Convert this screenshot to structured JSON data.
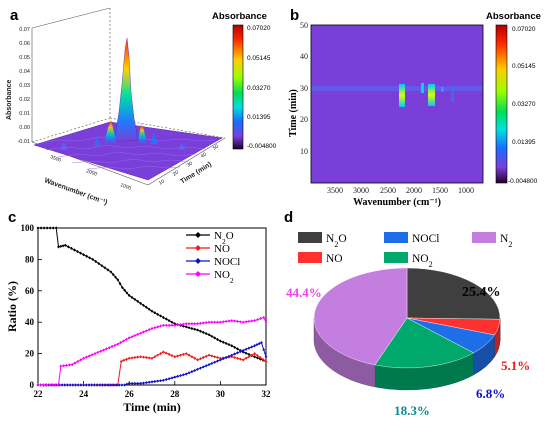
{
  "panels": {
    "a": {
      "letter": "a",
      "colorbar_title": "Absorbance",
      "colorbar_ticks": [
        "0.07020",
        "0.05145",
        "0.03270",
        "0.01395",
        "-0.004800"
      ],
      "z_axis_label": "Absorbance",
      "x_axis_label": "Wavenumber (cm⁻¹)",
      "y_axis_label": "Time (min)",
      "z_ticks": [
        "0.07",
        "0.06",
        "0.05",
        "0.04",
        "0.03",
        "0.02",
        "0.01",
        "0.00",
        "-0.01"
      ],
      "x_ticks": [
        "3500",
        "2000",
        "1000"
      ],
      "y_ticks": [
        "10",
        "20",
        "30",
        "40",
        "50"
      ]
    },
    "b": {
      "letter": "b",
      "colorbar_title": "Absorbance",
      "colorbar_ticks": [
        "0.07020",
        "0.05145",
        "0.03270",
        "0.01395",
        "-0.004800"
      ],
      "xlabel": "Wavenumber (cm⁻¹)",
      "ylabel": "Time (min)",
      "x_ticks": [
        "3500",
        "3000",
        "2500",
        "2000",
        "1500",
        "1000"
      ],
      "y_ticks": [
        "10",
        "20",
        "30",
        "40",
        "50"
      ]
    },
    "c": {
      "letter": "c"
    },
    "d": {
      "letter": "d"
    }
  },
  "colors": {
    "background_map": "#7a3fd8",
    "N2O": "#000000",
    "NO": "#ee1c1c",
    "NOCl": "#1010cc",
    "NO2": "#ff00ff",
    "pie_N2O": "#3f3f3f",
    "pie_NO": "#ff3030",
    "pie_NOCl": "#1e6ee8",
    "pie_NO2": "#00a86b",
    "pie_N2": "#c47ee0"
  },
  "chart_data": [
    {
      "type": "line",
      "panel": "c",
      "xlabel": "Time (min)",
      "ylabel": "Ratio (%)",
      "xlim": [
        22,
        32
      ],
      "ylim": [
        0,
        100
      ],
      "x_ticks": [
        22,
        24,
        26,
        28,
        30,
        32
      ],
      "y_ticks": [
        0,
        20,
        40,
        60,
        80,
        100
      ],
      "legend_position": "top-right",
      "series": [
        {
          "name": "N₂O",
          "key": "N2O",
          "x": [
            22.0,
            22.4,
            22.8,
            22.9,
            23.2,
            23.6,
            24.0,
            24.4,
            24.8,
            25.2,
            25.5,
            25.7,
            26.0,
            26.5,
            27.0,
            27.5,
            28.0,
            28.5,
            29.0,
            29.5,
            30.0,
            30.5,
            31.0,
            31.5,
            32.0
          ],
          "y": [
            100,
            100,
            100,
            88,
            89,
            86,
            83,
            80,
            76,
            72,
            67,
            62,
            57,
            52,
            47,
            43,
            39,
            37,
            35,
            32,
            28,
            25,
            21,
            18,
            15
          ]
        },
        {
          "name": "NO",
          "key": "NO",
          "x": [
            22.0,
            24.0,
            25.5,
            25.65,
            26.0,
            26.5,
            27.0,
            27.5,
            28.0,
            28.5,
            29.0,
            29.5,
            30.0,
            30.5,
            31.0,
            31.5,
            32.0
          ],
          "y": [
            0,
            0,
            0,
            15,
            17,
            18,
            17,
            21,
            18,
            20,
            16,
            19,
            17,
            18,
            16,
            20,
            15
          ]
        },
        {
          "name": "NOCl",
          "key": "NOCl",
          "x": [
            22.0,
            24.0,
            25.8,
            26.0,
            26.5,
            27.0,
            27.5,
            28.0,
            28.5,
            29.0,
            29.5,
            30.0,
            30.5,
            31.0,
            31.5,
            31.8,
            32.0
          ],
          "y": [
            0,
            0,
            0,
            1,
            1,
            2,
            3,
            5,
            7,
            10,
            13,
            16,
            19,
            22,
            25,
            27,
            18
          ]
        },
        {
          "name": "NO₂",
          "key": "NO2",
          "x": [
            22.0,
            22.9,
            23.0,
            23.5,
            24.0,
            24.5,
            25.0,
            25.5,
            26.0,
            26.5,
            27.0,
            27.5,
            28.0,
            28.5,
            29.0,
            29.5,
            30.0,
            30.5,
            31.0,
            31.5,
            31.9,
            32.0
          ],
          "y": [
            0,
            0,
            12,
            13,
            17,
            20,
            23,
            26,
            30,
            33,
            36,
            38,
            38,
            39,
            39,
            40,
            40,
            41,
            40,
            41,
            43,
            40
          ]
        }
      ]
    },
    {
      "type": "pie",
      "panel": "d",
      "labels": [
        "N₂O",
        "NO",
        "NOCl",
        "NO₂",
        "N₂"
      ],
      "keys": [
        "N2O",
        "NO",
        "NOCl",
        "NO2",
        "N2"
      ],
      "values": [
        25.4,
        5.1,
        6.8,
        18.3,
        44.4
      ],
      "value_labels": [
        "25.4%",
        "5.1%",
        "6.8%",
        "18.3%",
        "44.4%"
      ],
      "label_colors": [
        "#000000",
        "#ee1c1c",
        "#1010cc",
        "#0e8a8a",
        "#ee44ee"
      ],
      "legend_position": "top"
    }
  ]
}
